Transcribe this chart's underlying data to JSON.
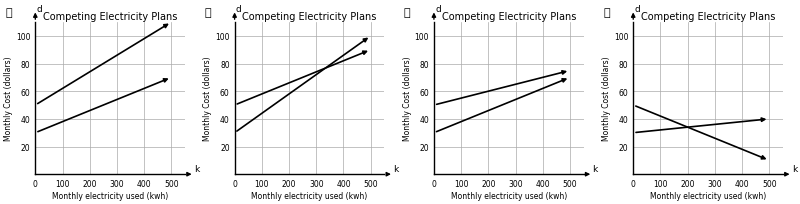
{
  "title": "Competing Electricity Plans",
  "xlabel": "Monthly electricity used (kwh)",
  "ylabel": "Monthly Cost (dollars)",
  "xlim": [
    0,
    550
  ],
  "ylim": [
    0,
    110
  ],
  "xticks": [
    0,
    100,
    200,
    300,
    400,
    500
  ],
  "yticks": [
    20,
    40,
    60,
    80,
    100
  ],
  "panels": [
    {
      "label": "A",
      "lines": [
        {
          "x0": 0,
          "y0": 50,
          "x1": 500,
          "y1": 110
        },
        {
          "x0": 0,
          "y0": 30,
          "x1": 500,
          "y1": 70
        }
      ]
    },
    {
      "label": "B",
      "lines": [
        {
          "x0": 0,
          "y0": 30,
          "x1": 500,
          "y1": 100
        },
        {
          "x0": 0,
          "y0": 50,
          "x1": 500,
          "y1": 90
        }
      ]
    },
    {
      "label": "C",
      "lines": [
        {
          "x0": 0,
          "y0": 50,
          "x1": 500,
          "y1": 75
        },
        {
          "x0": 0,
          "y0": 30,
          "x1": 500,
          "y1": 70
        }
      ]
    },
    {
      "label": "D",
      "lines": [
        {
          "x0": 0,
          "y0": 50,
          "x1": 500,
          "y1": 10
        },
        {
          "x0": 0,
          "y0": 30,
          "x1": 500,
          "y1": 40
        }
      ]
    }
  ],
  "circle_labels": [
    "Ⓐ",
    "Ⓑ",
    "Ⓒ",
    "Ⓓ"
  ],
  "background": "#ffffff",
  "line_color": "#000000",
  "line_width": 1.2,
  "grid_color": "#aaaaaa",
  "font_size_title": 7,
  "font_size_axis": 5.5,
  "font_size_tick": 5.5,
  "font_size_label": 6.5
}
